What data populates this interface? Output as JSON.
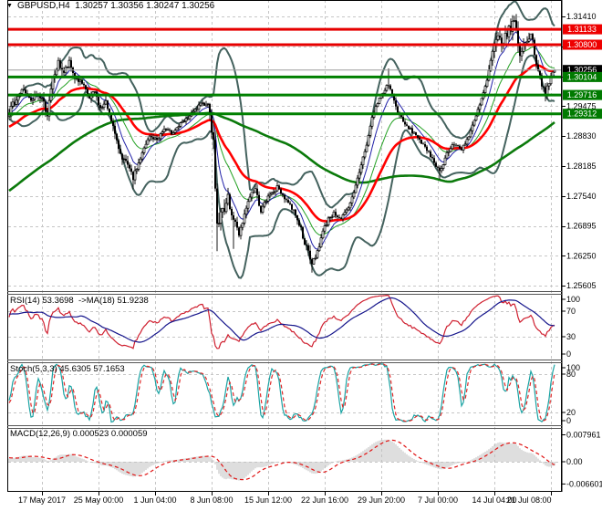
{
  "header": {
    "symbol_dropdown_icon": "▼",
    "title": "GBPUSD,H4  1.30257 1.30356 1.30247 1.30256"
  },
  "panels": {
    "rsi_label": "RSI(14) 53.3698  ->MA(18) 51.9238",
    "stoch_label": "Stoch(5,3,3) 45.6305 57.1653",
    "macd_label": "MACD(12,26,9) 0.000523 0.000059"
  },
  "colors": {
    "background": "#ffffff",
    "grid": "#c6c6c6",
    "frame": "#000000",
    "separator": "#565656",
    "resistance_line": "#e60000",
    "support_line": "#008000",
    "current_price_line": "#9a9a9a",
    "badge_resistance": "#ee0000",
    "badge_support": "#007a00",
    "badge_current": "#000000",
    "bollinger": "#44625e",
    "ma_red": "#ff0000",
    "ma_slow_green": "#0b7a0b",
    "ma_thin_blue": "#2121a8",
    "ma_thin_green": "#23a123",
    "candle_outline": "#000000",
    "candle_bull_fill": "#ffffff",
    "candle_bear_fill": "#000000",
    "rsi_line": "#cf1f2f",
    "rsi_ma_line": "#16168c",
    "stoch_k_line": "#1aa3a3",
    "stoch_d_line": "#e02828",
    "macd_histogram": "#bdbdbd",
    "macd_signal": "#e01414"
  },
  "price_axis": {
    "plain_labels": [
      {
        "text": "1.31410",
        "price": 1.3141
      },
      {
        "text": "1.29475",
        "price": 1.29475
      },
      {
        "text": "1.28830",
        "price": 1.2883
      },
      {
        "text": "1.28185",
        "price": 1.28185
      },
      {
        "text": "1.27540",
        "price": 1.2754
      },
      {
        "text": "1.26895",
        "price": 1.26895
      },
      {
        "text": "1.26250",
        "price": 1.2625
      },
      {
        "text": "1.25605",
        "price": 1.25605
      }
    ],
    "badges": [
      {
        "text": "1.31133",
        "price": 1.31133,
        "type": "resistance"
      },
      {
        "text": "1.30800",
        "price": 1.308,
        "type": "resistance"
      },
      {
        "text": "1.30256",
        "price": 1.30256,
        "type": "current"
      },
      {
        "text": "1.30104",
        "price": 1.30104,
        "type": "support"
      },
      {
        "text": "1.29716",
        "price": 1.29716,
        "type": "support"
      },
      {
        "text": "1.29312",
        "price": 1.29312,
        "type": "support"
      }
    ]
  },
  "time_axis": {
    "labels": [
      "17 May 2017",
      "25 May 00:00",
      "1 Jun 04:00",
      "8 Jun 08:00",
      "15 Jun 12:00",
      "22 Jun 16:00",
      "29 Jun 20:00",
      "7 Jul 00:00",
      "14 Jul 04:00",
      "21 Jul 08:00"
    ]
  },
  "chart_data": {
    "type": "candlestick",
    "symbol": "GBPUSD",
    "timeframe": "H4",
    "open": "1.30257",
    "high": "1.30356",
    "low": "1.30247",
    "close": "1.30256",
    "visible_bars": 300,
    "prehistory_bars": 140,
    "y_axis": {
      "top_price_at_grid": 1.3141,
      "grid_step": 0.00645,
      "visible_range": [
        1.2547,
        1.3149
      ]
    },
    "grid_prices": [
      1.3141,
      1.30765,
      1.3012,
      1.29475,
      1.2883,
      1.28185,
      1.2754,
      1.26895,
      1.2625,
      1.25605
    ],
    "levels": {
      "resistance": [
        1.31133,
        1.308
      ],
      "support": [
        1.30104,
        1.29716,
        1.29312
      ],
      "current_price": 1.30256
    },
    "price_keypoints": [
      [
        0,
        1.2935
      ],
      [
        4,
        1.2965
      ],
      [
        8,
        1.2985
      ],
      [
        12,
        1.2955
      ],
      [
        15,
        1.2975
      ],
      [
        18,
        1.2965
      ],
      [
        21,
        1.293
      ],
      [
        24,
        1.3005
      ],
      [
        27,
        1.304
      ],
      [
        30,
        1.302
      ],
      [
        33,
        1.304
      ],
      [
        36,
        1.301
      ],
      [
        40,
        1.2995
      ],
      [
        44,
        1.2965
      ],
      [
        47,
        1.2978
      ],
      [
        50,
        1.2942
      ],
      [
        53,
        1.2955
      ],
      [
        56,
        1.292
      ],
      [
        59,
        1.2868
      ],
      [
        62,
        1.2838
      ],
      [
        65,
        1.2818
      ],
      [
        68,
        1.2792
      ],
      [
        71,
        1.2825
      ],
      [
        74,
        1.2855
      ],
      [
        77,
        1.2882
      ],
      [
        81,
        1.2875
      ],
      [
        85,
        1.2898
      ],
      [
        89,
        1.289
      ],
      [
        93,
        1.2905
      ],
      [
        97,
        1.2918
      ],
      [
        101,
        1.2935
      ],
      [
        105,
        1.295
      ],
      [
        108,
        1.2955
      ],
      [
        110,
        1.2942
      ],
      [
        112,
        1.2862
      ],
      [
        114,
        1.2692
      ],
      [
        117,
        1.2722
      ],
      [
        120,
        1.2748
      ],
      [
        123,
        1.2705
      ],
      [
        126,
        1.2672
      ],
      [
        129,
        1.2715
      ],
      [
        132,
        1.2755
      ],
      [
        135,
        1.2768
      ],
      [
        138,
        1.2722
      ],
      [
        141,
        1.2745
      ],
      [
        144,
        1.2762
      ],
      [
        147,
        1.2772
      ],
      [
        150,
        1.2756
      ],
      [
        153,
        1.274
      ],
      [
        157,
        1.2716
      ],
      [
        160,
        1.2682
      ],
      [
        163,
        1.2642
      ],
      [
        166,
        1.2606
      ],
      [
        169,
        1.2636
      ],
      [
        172,
        1.2676
      ],
      [
        175,
        1.2706
      ],
      [
        178,
        1.2716
      ],
      [
        182,
        1.2706
      ],
      [
        186,
        1.2726
      ],
      [
        189,
        1.276
      ],
      [
        193,
        1.2822
      ],
      [
        196,
        1.2866
      ],
      [
        199,
        1.2922
      ],
      [
        202,
        1.2956
      ],
      [
        205,
        1.2976
      ],
      [
        208,
        1.2996
      ],
      [
        212,
        1.2946
      ],
      [
        216,
        1.2912
      ],
      [
        220,
        1.2896
      ],
      [
        224,
        1.2882
      ],
      [
        228,
        1.2856
      ],
      [
        232,
        1.2836
      ],
      [
        236,
        1.2806
      ],
      [
        240,
        1.2846
      ],
      [
        244,
        1.2866
      ],
      [
        248,
        1.2856
      ],
      [
        252,
        1.2882
      ],
      [
        256,
        1.2926
      ],
      [
        259,
        1.2962
      ],
      [
        262,
        1.3002
      ],
      [
        265,
        1.3062
      ],
      [
        268,
        1.3096
      ],
      [
        271,
        1.3086
      ],
      [
        274,
        1.3112
      ],
      [
        277,
        1.3132
      ],
      [
        280,
        1.3062
      ],
      [
        283,
        1.3082
      ],
      [
        286,
        1.3106
      ],
      [
        289,
        1.3042
      ],
      [
        292,
        1.2996
      ],
      [
        294,
        1.2976
      ],
      [
        296,
        1.2996
      ],
      [
        298,
        1.302
      ],
      [
        299,
        1.3026
      ]
    ],
    "volatility_keypoints": [
      [
        0,
        0.0022
      ],
      [
        18,
        0.0026
      ],
      [
        30,
        0.0024
      ],
      [
        44,
        0.0018
      ],
      [
        56,
        0.0022
      ],
      [
        68,
        0.002
      ],
      [
        80,
        0.0014
      ],
      [
        100,
        0.0013
      ],
      [
        108,
        0.0016
      ],
      [
        112,
        0.0052
      ],
      [
        116,
        0.0044
      ],
      [
        122,
        0.0028
      ],
      [
        130,
        0.0018
      ],
      [
        140,
        0.0015
      ],
      [
        152,
        0.0014
      ],
      [
        160,
        0.002
      ],
      [
        166,
        0.0026
      ],
      [
        172,
        0.0018
      ],
      [
        180,
        0.0013
      ],
      [
        193,
        0.0016
      ],
      [
        205,
        0.0018
      ],
      [
        212,
        0.0015
      ],
      [
        224,
        0.0014
      ],
      [
        236,
        0.0016
      ],
      [
        248,
        0.0013
      ],
      [
        258,
        0.0016
      ],
      [
        265,
        0.0028
      ],
      [
        270,
        0.0034
      ],
      [
        277,
        0.0036
      ],
      [
        283,
        0.0026
      ],
      [
        290,
        0.0022
      ],
      [
        295,
        0.0018
      ],
      [
        299,
        0.0016
      ]
    ],
    "wick_overrides": [
      {
        "bar": 27,
        "high": 1.3047
      },
      {
        "bar": 68,
        "low": 1.2769
      },
      {
        "bar": 114,
        "low": 1.2635
      },
      {
        "bar": 123,
        "low": 1.264
      },
      {
        "bar": 166,
        "low": 1.2589
      },
      {
        "bar": 208,
        "high": 1.3029
      },
      {
        "bar": 236,
        "low": 1.279
      },
      {
        "bar": 277,
        "high": 1.3142
      },
      {
        "bar": 294,
        "low": 1.2958
      }
    ],
    "indicators": {
      "bollinger": {
        "period": 20,
        "deviation": 2
      },
      "ma_red": {
        "period": 40
      },
      "ma_slow_green": {
        "period": 130
      },
      "ma_thin_blue": {
        "period": 9
      },
      "ma_thin_green": {
        "period": 21
      },
      "rsi": {
        "period": 14,
        "ma_period": 18,
        "value": 53.3698,
        "ma_value": 51.9238,
        "levels": [
          70,
          30
        ],
        "scale": [
          100,
          70,
          30,
          0
        ]
      },
      "stoch": {
        "k": 5,
        "d": 3,
        "slowing": 3,
        "value": 45.6305,
        "signal_value": 57.1653,
        "levels": [
          80,
          20
        ],
        "scale": [
          100,
          80,
          20,
          0
        ]
      },
      "macd": {
        "fast": 12,
        "slow": 26,
        "signal": 9,
        "value": 0.000523,
        "signal_value": 5.9e-05,
        "scale": [
          "0.007961",
          "0.00",
          "-0.006601"
        ],
        "scale_values": [
          0.007961,
          0,
          -0.006601
        ]
      }
    }
  }
}
